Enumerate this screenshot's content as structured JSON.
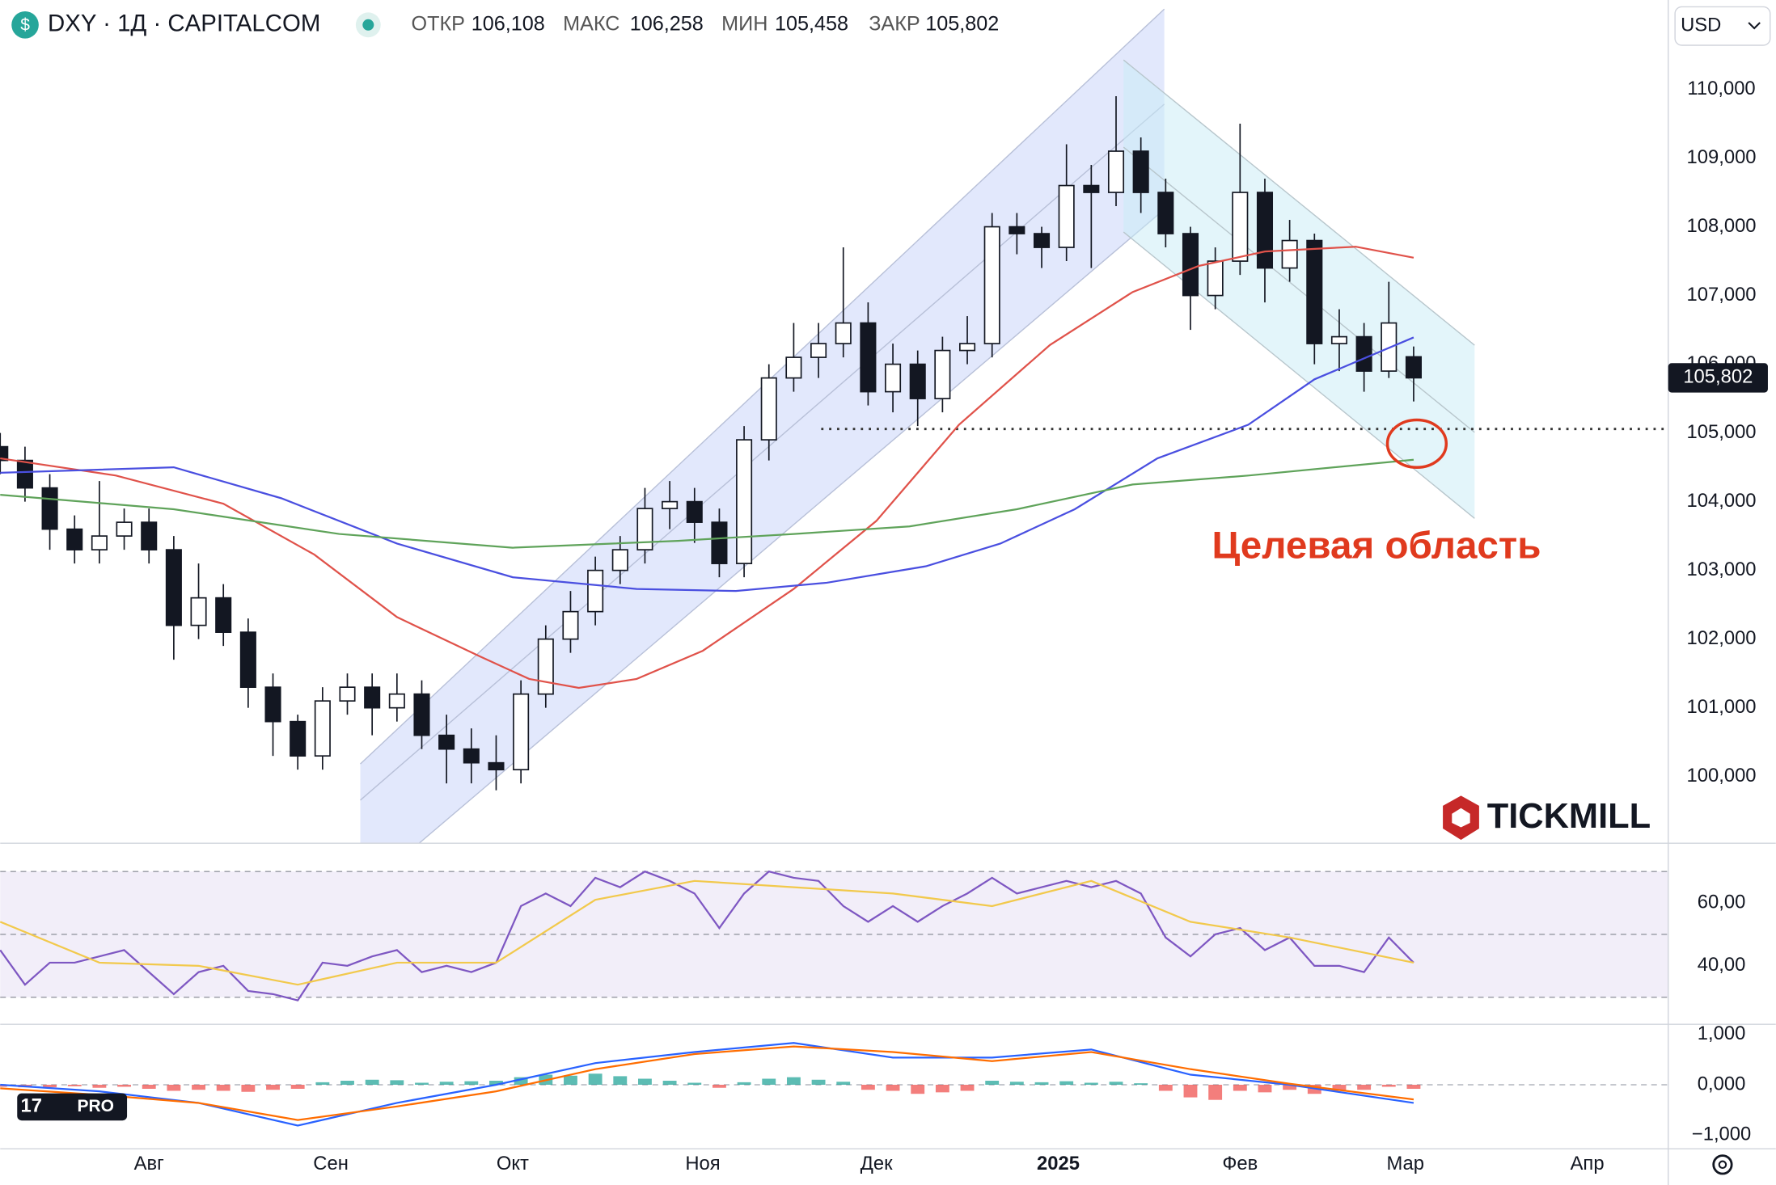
{
  "toolbar": {
    "currency": "USD"
  },
  "branding": {
    "watermark": "TICKMILL",
    "platform": "PRO"
  },
  "chart_data": [
    {
      "type": "candlestick",
      "title": "DXY · 1Д · CAPITALCOM",
      "ohlc_names": [
        "ОТКР",
        "МАКС",
        "МИН",
        "ЗАКР"
      ],
      "ohlc_value_labels": [
        "106,108",
        "106,258",
        "105,458",
        "105,802"
      ],
      "annotation": "Целевая область",
      "xlim": [
        0,
        201.8
      ],
      "ylim": [
        99.03,
        111.3
      ],
      "yticks": [
        {
          "value": 100,
          "label": "100,000"
        },
        {
          "value": 101,
          "label": "101,000"
        },
        {
          "value": 102,
          "label": "102,000"
        },
        {
          "value": 103,
          "label": "103,000"
        },
        {
          "value": 104,
          "label": "104,000"
        },
        {
          "value": 105,
          "label": "105,000"
        },
        {
          "value": 106,
          "label": "106,000"
        },
        {
          "value": 107,
          "label": "107,000"
        },
        {
          "value": 108,
          "label": "108,000"
        },
        {
          "value": 109,
          "label": "109,000"
        },
        {
          "value": 110,
          "label": "110,000"
        }
      ],
      "x": [
        0,
        3,
        6,
        9,
        12,
        15,
        18,
        21,
        24,
        27,
        30,
        33,
        36,
        39,
        42,
        45,
        48,
        51,
        54,
        57,
        60,
        63,
        66,
        69,
        72,
        75,
        78,
        81,
        84,
        87,
        90,
        93,
        96,
        99,
        102,
        105,
        108,
        111,
        114,
        117,
        120,
        123,
        126,
        129,
        132,
        135,
        138,
        141,
        144,
        147,
        150,
        153,
        156,
        159,
        162,
        165,
        168,
        171
      ],
      "open": [
        104.8,
        104.6,
        104.2,
        103.6,
        103.3,
        103.5,
        103.7,
        103.3,
        102.2,
        102.6,
        102.1,
        101.3,
        100.8,
        100.3,
        101.1,
        101.3,
        101.0,
        101.2,
        100.6,
        100.4,
        100.2,
        100.1,
        101.2,
        102.0,
        102.4,
        103.0,
        103.3,
        103.9,
        104.0,
        103.7,
        103.1,
        104.9,
        105.8,
        106.1,
        106.3,
        106.6,
        105.6,
        106.0,
        105.5,
        106.2,
        106.3,
        108.0,
        107.9,
        107.7,
        108.6,
        108.5,
        109.1,
        108.5,
        107.9,
        107.0,
        107.5,
        108.5,
        107.4,
        107.8,
        106.3,
        106.4,
        105.9,
        106.108
      ],
      "high": [
        105.0,
        104.8,
        104.4,
        103.8,
        104.3,
        103.9,
        103.9,
        103.5,
        103.1,
        102.8,
        102.3,
        101.5,
        100.9,
        101.3,
        101.5,
        101.5,
        101.5,
        101.4,
        100.9,
        100.7,
        100.6,
        101.4,
        102.2,
        102.7,
        103.2,
        103.5,
        104.2,
        104.3,
        104.2,
        103.9,
        105.1,
        106.0,
        106.6,
        106.6,
        107.7,
        106.9,
        106.3,
        106.2,
        106.4,
        106.7,
        108.2,
        108.2,
        108.0,
        109.2,
        108.9,
        109.9,
        109.3,
        108.7,
        108.0,
        107.7,
        109.5,
        108.7,
        108.1,
        107.9,
        106.8,
        106.6,
        107.2,
        106.258
      ],
      "low": [
        104.4,
        104.0,
        103.3,
        103.1,
        103.1,
        103.3,
        103.1,
        101.7,
        102.0,
        101.9,
        101.0,
        100.3,
        100.1,
        100.1,
        100.9,
        100.6,
        100.8,
        100.4,
        99.9,
        99.9,
        99.8,
        99.9,
        101.0,
        101.8,
        102.2,
        102.8,
        103.1,
        103.6,
        103.4,
        102.9,
        102.9,
        104.6,
        105.6,
        105.8,
        106.1,
        105.4,
        105.3,
        105.1,
        105.3,
        106.0,
        106.1,
        107.6,
        107.4,
        107.5,
        107.4,
        108.3,
        108.2,
        107.7,
        106.5,
        106.8,
        107.3,
        106.9,
        107.2,
        106.0,
        105.9,
        105.6,
        105.8,
        105.458
      ],
      "close": [
        104.6,
        104.2,
        103.6,
        103.3,
        103.5,
        103.7,
        103.3,
        102.2,
        102.6,
        102.1,
        101.3,
        100.8,
        100.3,
        101.1,
        101.3,
        101.0,
        101.2,
        100.6,
        100.4,
        100.2,
        100.1,
        101.2,
        102.0,
        102.4,
        103.0,
        103.3,
        103.9,
        104.0,
        103.7,
        103.1,
        104.9,
        105.8,
        106.1,
        106.3,
        106.6,
        105.6,
        106.0,
        105.5,
        106.2,
        106.3,
        108.0,
        107.9,
        107.7,
        108.6,
        108.5,
        109.1,
        108.5,
        107.9,
        107.0,
        107.5,
        108.5,
        107.4,
        107.8,
        106.3,
        106.4,
        105.9,
        106.6,
        105.802
      ],
      "series": [
        {
          "color": "#e0524a",
          "x": [
            0,
            14,
            27,
            38,
            48,
            58,
            64,
            70,
            77,
            85,
            96,
            106,
            116,
            127,
            137,
            145,
            153,
            164,
            171
          ],
          "values": [
            104.63,
            104.38,
            103.97,
            103.23,
            102.32,
            101.75,
            101.42,
            101.29,
            101.42,
            101.83,
            102.73,
            103.72,
            105.12,
            106.28,
            107.05,
            107.43,
            107.64,
            107.71,
            107.55
          ]
        },
        {
          "color": "#4a4fe0",
          "x": [
            0,
            21,
            34,
            48,
            62,
            77,
            89,
            100,
            112,
            121,
            130,
            140,
            151,
            159,
            171
          ],
          "values": [
            104.42,
            104.5,
            104.05,
            103.39,
            102.9,
            102.73,
            102.7,
            102.82,
            103.06,
            103.39,
            103.89,
            104.63,
            105.12,
            105.78,
            106.39
          ]
        },
        {
          "color": "#5fa35a",
          "x": [
            0,
            21,
            41,
            62,
            82,
            96,
            110,
            123,
            137,
            151,
            171
          ],
          "values": [
            104.1,
            103.89,
            103.53,
            103.33,
            103.43,
            103.53,
            103.64,
            103.89,
            104.25,
            104.38,
            104.61
          ]
        }
      ]
    },
    {
      "type": "line",
      "xlim": [
        0,
        201.8
      ],
      "ylim": [
        21.4,
        79
      ],
      "yticks": [
        {
          "value": 40,
          "label": "40,00"
        },
        {
          "value": 60,
          "label": "60,00"
        }
      ],
      "bands": [
        30,
        50,
        70
      ],
      "series": [
        {
          "color": "#7e57c2",
          "x": [
            0,
            3,
            6,
            9,
            12,
            15,
            18,
            21,
            24,
            27,
            30,
            33,
            36,
            39,
            42,
            45,
            48,
            51,
            54,
            57,
            60,
            63,
            66,
            69,
            72,
            75,
            78,
            81,
            84,
            87,
            90,
            93,
            96,
            99,
            102,
            105,
            108,
            111,
            114,
            117,
            120,
            123,
            126,
            129,
            132,
            135,
            138,
            141,
            144,
            147,
            150,
            153,
            156,
            159,
            162,
            165,
            168,
            171
          ],
          "values": [
            45,
            34,
            41,
            41,
            43,
            45,
            38,
            31,
            38,
            40,
            32,
            31,
            29,
            41,
            40,
            43,
            45,
            38,
            40,
            38,
            41,
            59,
            63,
            59,
            68,
            65,
            70,
            67,
            63,
            52,
            63,
            70,
            68,
            67,
            59,
            54,
            59,
            54,
            59,
            63,
            68,
            63,
            65,
            67,
            65,
            67,
            63,
            49,
            43,
            50,
            52,
            45,
            49,
            40,
            40,
            38,
            49,
            41
          ]
        },
        {
          "color": "#f2c94c",
          "x": [
            0,
            12,
            24,
            36,
            48,
            60,
            72,
            84,
            96,
            108,
            120,
            132,
            144,
            156,
            171
          ],
          "values": [
            54,
            41,
            40,
            34,
            41,
            41,
            61,
            67,
            65,
            63,
            59,
            67,
            54,
            49,
            41
          ]
        }
      ]
    },
    {
      "type": "macd",
      "xlim": [
        0,
        201.8
      ],
      "ylim": [
        -1.27,
        1.2
      ],
      "yticks": [
        {
          "value": 1,
          "label": "1,000"
        },
        {
          "value": 0,
          "label": "0,000"
        },
        {
          "value": -1,
          "label": "−1,000"
        }
      ],
      "xticks": [
        {
          "value": 18,
          "label": "Авг"
        },
        {
          "value": 40,
          "label": "Сен"
        },
        {
          "value": 62,
          "label": "Окт"
        },
        {
          "value": 85,
          "label": "Ноя"
        },
        {
          "value": 106,
          "label": "Дек"
        },
        {
          "value": 128,
          "label": "2025"
        },
        {
          "value": 150,
          "label": "Фев"
        },
        {
          "value": 170,
          "label": "Мар"
        },
        {
          "value": 192,
          "label": "Апр"
        }
      ],
      "positive_color": "#26a69a",
      "negative_color": "#ef5350",
      "histogram_x": [
        0,
        3,
        6,
        9,
        12,
        15,
        18,
        21,
        24,
        27,
        30,
        33,
        36,
        39,
        42,
        45,
        48,
        51,
        54,
        57,
        60,
        63,
        66,
        69,
        72,
        75,
        78,
        81,
        84,
        87,
        90,
        93,
        96,
        99,
        102,
        105,
        108,
        111,
        114,
        117,
        120,
        123,
        126,
        129,
        132,
        135,
        138,
        141,
        144,
        147,
        150,
        153,
        156,
        159,
        162,
        165,
        168,
        171
      ],
      "histogram": [
        -0.04,
        -0.05,
        -0.05,
        -0.03,
        -0.06,
        -0.04,
        -0.08,
        -0.12,
        -0.1,
        -0.12,
        -0.14,
        -0.1,
        -0.08,
        0.05,
        0.08,
        0.1,
        0.09,
        0.04,
        0.06,
        0.07,
        0.08,
        0.15,
        0.2,
        0.18,
        0.22,
        0.17,
        0.12,
        0.08,
        0.04,
        -0.06,
        0.05,
        0.12,
        0.15,
        0.1,
        0.06,
        -0.1,
        -0.12,
        -0.18,
        -0.15,
        -0.12,
        0.08,
        0.06,
        0.05,
        0.07,
        0.04,
        0.06,
        0.03,
        -0.12,
        -0.25,
        -0.3,
        -0.12,
        -0.15,
        -0.1,
        -0.18,
        -0.12,
        -0.1,
        -0.04,
        -0.08
      ],
      "series": [
        {
          "color": "#2962ff",
          "x": [
            0,
            12,
            24,
            36,
            48,
            60,
            72,
            84,
            96,
            108,
            120,
            132,
            144,
            156,
            171
          ],
          "values": [
            0,
            -0.13,
            -0.36,
            -0.81,
            -0.36,
            0,
            0.43,
            0.65,
            0.83,
            0.54,
            0.54,
            0.7,
            0.2,
            0,
            -0.36
          ]
        },
        {
          "color": "#ff6d00",
          "x": [
            0,
            12,
            24,
            36,
            48,
            60,
            72,
            84,
            96,
            108,
            120,
            132,
            144,
            156,
            171
          ],
          "values": [
            -0.07,
            -0.2,
            -0.36,
            -0.7,
            -0.43,
            -0.13,
            0.31,
            0.61,
            0.76,
            0.65,
            0.47,
            0.65,
            0.31,
            0.02,
            -0.29
          ]
        }
      ]
    }
  ]
}
